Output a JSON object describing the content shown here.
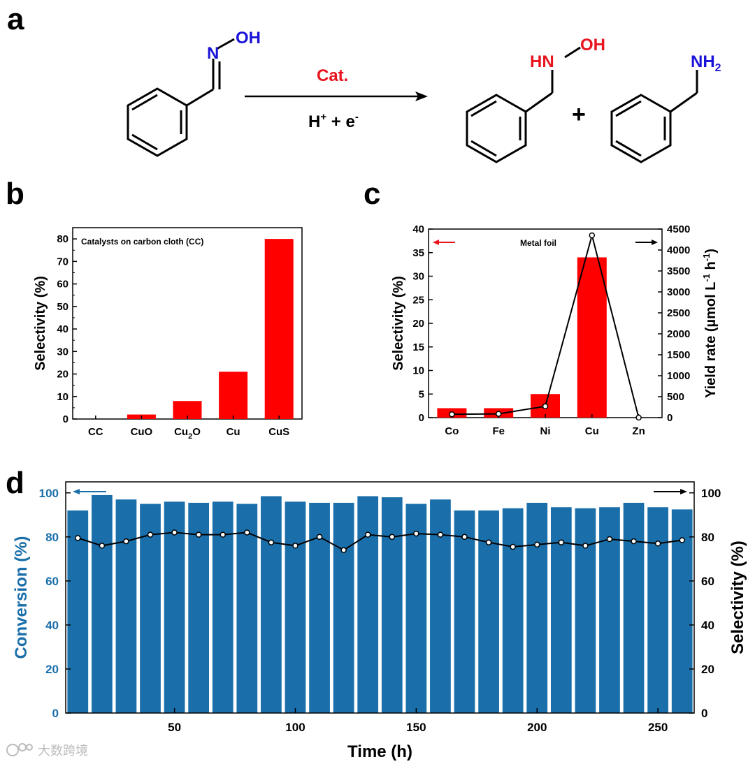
{
  "panels": {
    "a": "a",
    "b": "b",
    "c": "c",
    "d": "d"
  },
  "reaction": {
    "reactant_n": "N",
    "reactant_oh": "OH",
    "catalyst": "Cat.",
    "conditions_h": "H",
    "conditions_plus_sup": "+",
    "conditions_rest": " + e",
    "conditions_minus_sup": "-",
    "product1_hn": "HN",
    "product1_oh": "OH",
    "plus": "+",
    "product2_nh": "NH",
    "product2_sub": "2",
    "colors": {
      "blue": "#1a14d8",
      "red": "#e8141e",
      "black": "#000000"
    }
  },
  "chart_data": [
    {
      "panel": "b",
      "type": "bar",
      "title": "Catalysts on carbon cloth (CC)",
      "categories": [
        "CC",
        "CuO",
        "Cu2O",
        "Cu",
        "CuS"
      ],
      "category_labels": [
        {
          "main": "CC",
          "sub": "",
          "tail": ""
        },
        {
          "main": "CuO",
          "sub": "",
          "tail": ""
        },
        {
          "main": "Cu",
          "sub": "2",
          "tail": "O"
        },
        {
          "main": "Cu",
          "sub": "",
          "tail": ""
        },
        {
          "main": "CuS",
          "sub": "",
          "tail": ""
        }
      ],
      "values": [
        0,
        2,
        8,
        21,
        80
      ],
      "ylabel": "Selectivity (%)",
      "xlabel": "",
      "ylim": [
        0,
        85
      ],
      "yticks": [
        0,
        10,
        20,
        30,
        40,
        50,
        60,
        70,
        80
      ],
      "color": "#ff0000"
    },
    {
      "panel": "c",
      "type": "bar+line",
      "annotation": "Metal foil",
      "categories": [
        "Co",
        "Fe",
        "Ni",
        "Cu",
        "Zn"
      ],
      "series": [
        {
          "name": "Selectivity (%)",
          "axis": "left",
          "type": "bar",
          "values": [
            2,
            2,
            5,
            34,
            0
          ],
          "color": "#ff0000"
        },
        {
          "name": "Yield rate",
          "axis": "right",
          "type": "line",
          "values": [
            80,
            90,
            270,
            4350,
            0
          ],
          "color": "#000000"
        }
      ],
      "ylabel_left": "Selectivity (%)",
      "ylabel_right_main": "Yield rate (µmol L",
      "ylabel_right_sup1": "-1",
      "ylabel_right_mid": " h",
      "ylabel_right_sup2": "-1",
      "ylabel_right_end": ")",
      "ylim_left": [
        0,
        40
      ],
      "ylim_right": [
        0,
        4500
      ],
      "yticks_left": [
        0,
        5,
        10,
        15,
        20,
        25,
        30,
        35,
        40
      ],
      "yticks_right": [
        0,
        500,
        1000,
        1500,
        2000,
        2500,
        3000,
        3500,
        4000,
        4500
      ]
    },
    {
      "panel": "d",
      "type": "bar+line",
      "x": [
        10,
        20,
        30,
        40,
        50,
        60,
        70,
        80,
        90,
        100,
        110,
        120,
        130,
        140,
        150,
        160,
        170,
        180,
        190,
        200,
        210,
        220,
        230,
        240,
        250,
        260
      ],
      "series": [
        {
          "name": "Conversion (%)",
          "axis": "left",
          "type": "bar",
          "color": "#1a6faa",
          "values": [
            92,
            99,
            97,
            95,
            96,
            95.5,
            96,
            95,
            98.5,
            96,
            95.5,
            95.5,
            98.5,
            98,
            95,
            97,
            92,
            92,
            93,
            95.5,
            93.5,
            93,
            93.5,
            95.5,
            93.5,
            92.5
          ]
        },
        {
          "name": "Selectivity (%)",
          "axis": "right",
          "type": "line",
          "color": "#000000",
          "values": [
            79.5,
            76,
            78,
            81,
            82,
            81,
            81,
            82,
            77.5,
            76,
            80,
            74,
            81,
            80,
            81.5,
            81,
            80,
            77.5,
            75.5,
            76.5,
            77.5,
            76,
            79,
            78,
            77,
            78.5
          ]
        }
      ],
      "xlabel": "Time (h)",
      "ylabel_left": "Conversion (%)",
      "ylabel_right": "Selectivity (%)",
      "xlim": [
        5,
        265
      ],
      "ylim_left": [
        0,
        105
      ],
      "ylim_right": [
        0,
        105
      ],
      "xticks": [
        50,
        100,
        150,
        200,
        250
      ],
      "yticks_left": [
        0,
        20,
        40,
        60,
        80,
        100
      ],
      "yticks_right": [
        0,
        20,
        40,
        60,
        80,
        100
      ]
    }
  ],
  "watermark": {
    "text": "大数跨境",
    "logo": "logo-icon"
  }
}
